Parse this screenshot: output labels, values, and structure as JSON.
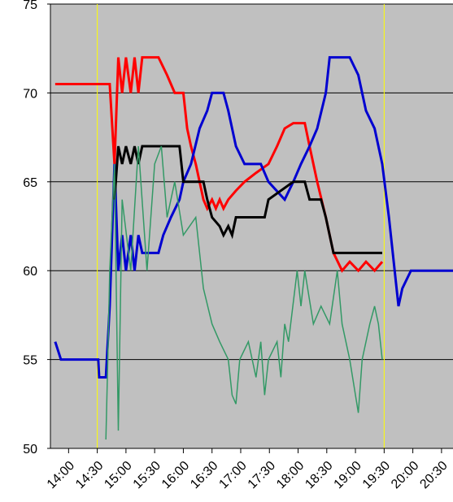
{
  "chart_data": {
    "type": "line",
    "xlim": [
      821,
      1242
    ],
    "ylim": [
      50,
      75
    ],
    "yticks": [
      50,
      55,
      60,
      65,
      70,
      75
    ],
    "xticks": [
      {
        "value": 840,
        "label": "14:00"
      },
      {
        "value": 870,
        "label": "14:30"
      },
      {
        "value": 900,
        "label": "15:00"
      },
      {
        "value": 930,
        "label": "15:30"
      },
      {
        "value": 960,
        "label": "16:00"
      },
      {
        "value": 990,
        "label": "16:30"
      },
      {
        "value": 1020,
        "label": "17:00"
      },
      {
        "value": 1050,
        "label": "17:30"
      },
      {
        "value": 1080,
        "label": "18:00"
      },
      {
        "value": 1110,
        "label": "18:30"
      },
      {
        "value": 1140,
        "label": "19:00"
      },
      {
        "value": 1170,
        "label": "19:30"
      },
      {
        "value": 1200,
        "label": "20:00"
      },
      {
        "value": 1230,
        "label": "20:30"
      }
    ],
    "grid": true,
    "plot_background": "#c0c0c0",
    "vlines": [
      870,
      1170
    ],
    "vline_color": "#ffff00",
    "series": [
      {
        "color": "#ff0000",
        "x": [
          826,
          883,
          888,
          892,
          896,
          900,
          905,
          909,
          913,
          917,
          922,
          934,
          943,
          951,
          960,
          964,
          968,
          973,
          977,
          981,
          985,
          990,
          994,
          998,
          1002,
          1007,
          1015,
          1024,
          1036,
          1049,
          1058,
          1066,
          1075,
          1087,
          1092,
          1100,
          1109,
          1117,
          1126,
          1134,
          1143,
          1151,
          1160,
          1168
        ],
        "values": [
          70.5,
          70.5,
          66,
          72,
          70,
          72,
          70,
          72,
          70,
          72,
          72,
          72,
          71,
          70,
          70,
          68,
          67,
          66,
          65,
          64,
          63.5,
          64,
          63.5,
          64,
          63.5,
          64,
          64.5,
          65,
          65.5,
          66,
          67,
          68,
          68.3,
          68.3,
          67,
          65,
          63,
          61,
          60,
          60.5,
          60,
          60.5,
          60,
          60.5
        ]
      },
      {
        "color": "#0000d0",
        "x": [
          826,
          832,
          871,
          872,
          879,
          883,
          888,
          892,
          896,
          900,
          905,
          909,
          913,
          917,
          934,
          939,
          947,
          956,
          960,
          968,
          977,
          985,
          990,
          1002,
          1007,
          1015,
          1024,
          1041,
          1049,
          1066,
          1075,
          1083,
          1092,
          1100,
          1109,
          1113,
          1134,
          1143,
          1151,
          1160,
          1168,
          1175,
          1181,
          1185,
          1189,
          1198,
          1242
        ],
        "values": [
          56,
          55,
          55,
          54,
          54,
          58,
          66,
          60,
          62,
          60,
          62,
          60,
          62,
          61,
          61,
          62,
          63,
          64,
          65,
          66,
          68,
          69,
          70,
          70,
          69,
          67,
          66,
          66,
          65,
          64,
          65,
          66,
          67,
          68,
          70,
          72,
          72,
          71,
          69,
          68,
          66,
          63,
          60,
          58,
          59,
          60,
          60
        ]
      },
      {
        "color": "#000000",
        "x": [
          888,
          892,
          896,
          900,
          905,
          909,
          913,
          917,
          922,
          956,
          960,
          981,
          985,
          990,
          998,
          1002,
          1007,
          1011,
          1015,
          1045,
          1049,
          1075,
          1087,
          1092,
          1104,
          1109,
          1117,
          1168
        ],
        "values": [
          64,
          67,
          66,
          67,
          66,
          67,
          66,
          67,
          67,
          67,
          65,
          65,
          64,
          63,
          62.5,
          62,
          62.5,
          62,
          63,
          63,
          64,
          65,
          65,
          64,
          64,
          63,
          61,
          61
        ]
      },
      {
        "color": "#339966",
        "x": [
          879,
          881,
          883,
          888,
          892,
          896,
          905,
          913,
          922,
          930,
          937,
          943,
          951,
          960,
          973,
          981,
          990,
          998,
          1007,
          1011,
          1015,
          1019,
          1028,
          1036,
          1041,
          1045,
          1049,
          1058,
          1062,
          1066,
          1070,
          1079,
          1083,
          1087,
          1096,
          1104,
          1113,
          1121,
          1126,
          1134,
          1143,
          1147,
          1155,
          1160,
          1164,
          1168
        ],
        "values": [
          50.5,
          55,
          60,
          66,
          51,
          64,
          60,
          67,
          60,
          66,
          67,
          63,
          65,
          62,
          63,
          59,
          57,
          56,
          55,
          53,
          52.5,
          55,
          56,
          54,
          56,
          53,
          55,
          56,
          54,
          57,
          56,
          60,
          58,
          60,
          57,
          58,
          57,
          60,
          57,
          55,
          52,
          55,
          57,
          58,
          57,
          55
        ]
      }
    ]
  }
}
